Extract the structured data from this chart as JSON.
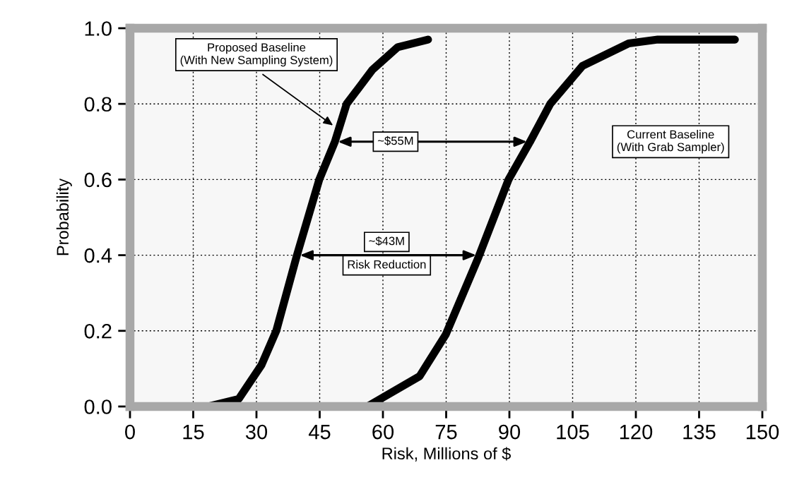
{
  "chart_data": {
    "type": "line",
    "xlabel": "Risk, Millions of $",
    "ylabel": "Probability",
    "xlim": [
      0,
      150
    ],
    "xticks": [
      0,
      15,
      30,
      45,
      60,
      75,
      90,
      105,
      120,
      135,
      150
    ],
    "ylim": [
      0,
      1.0
    ],
    "yticks": [
      {
        "value": 0,
        "label": "0.0"
      },
      {
        "value": 0.2,
        "label": "0.2"
      },
      {
        "value": 0.4,
        "label": "0.4"
      },
      {
        "value": 0.6,
        "label": "0.6"
      },
      {
        "value": 0.8,
        "label": "0.8"
      },
      {
        "value": 1.0,
        "label": "1.0"
      }
    ],
    "grid": true,
    "line_style": "solid",
    "marker": "none",
    "series": [
      {
        "color": "#000000",
        "x": [
          18.6,
          25.8,
          31.2,
          34.7,
          39.6,
          44.9,
          48.6,
          51.4,
          57.5,
          63.5,
          70.7
        ],
        "values": [
          0,
          0.02,
          0.11,
          0.2,
          0.4,
          0.6,
          0.7,
          0.8,
          0.89,
          0.95,
          0.97
        ]
      },
      {
        "color": "#000000",
        "x": [
          56.3,
          68.7,
          74.9,
          82.5,
          89.8,
          94.9,
          99.7,
          107.3,
          118.3,
          125.2,
          143.5
        ],
        "values": [
          0,
          0.08,
          0.19,
          0.39,
          0.6,
          0.7,
          0.8,
          0.9,
          0.96,
          0.97,
          0.97
        ]
      }
    ],
    "annotations": [
      "Proposed Baseline\n(With New Sampling System)",
      "~$55M",
      "~$43M",
      "Risk Reduction",
      "Current Baseline\n(With Grab Sampler)"
    ]
  }
}
